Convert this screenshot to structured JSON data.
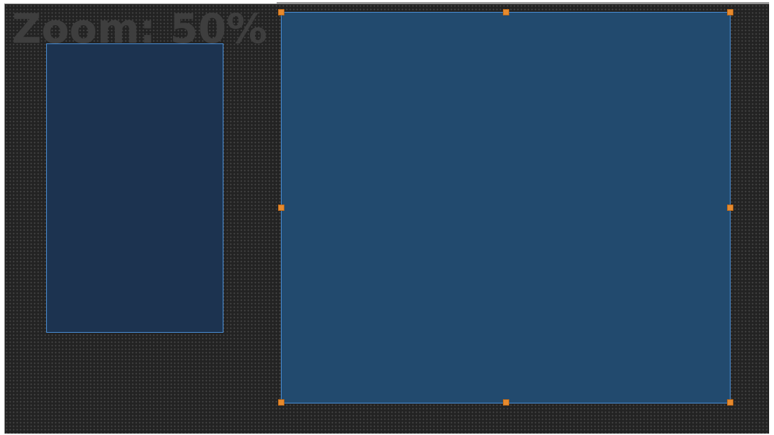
{
  "canvas": {
    "zoom_label": "Zoom: 50%"
  },
  "frames": [
    {
      "id": "frame-1",
      "selected": false,
      "fill_color": "#1c3350",
      "border_color": "#4a90d9"
    },
    {
      "id": "frame-2",
      "selected": true,
      "fill_color": "#224a6e",
      "border_color": "#4a90d9",
      "handle_color": "#e68a2e",
      "handles": [
        "top-left",
        "top-center",
        "top-right",
        "middle-left",
        "middle-right",
        "bottom-left",
        "bottom-center",
        "bottom-right"
      ]
    }
  ]
}
